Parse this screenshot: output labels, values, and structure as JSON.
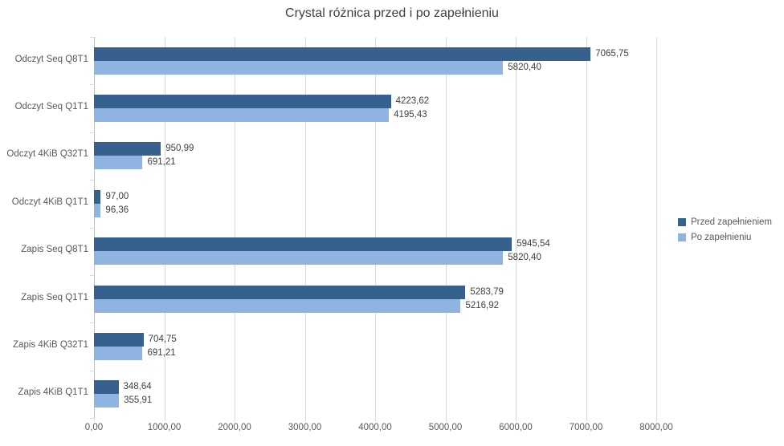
{
  "title": "Crystal różnica przed i po zapełnieniu",
  "chart_data": {
    "type": "bar",
    "orientation": "horizontal",
    "title": "Crystal różnica przed i po zapełnieniu",
    "categories": [
      "Odczyt Seq Q8T1",
      "Odczyt Seq Q1T1",
      "Odczyt 4KiB Q32T1",
      "Odczyt 4KiB Q1T1",
      "Zapis Seq Q8T1",
      "Zapis Seq Q1T1",
      "Zapis 4KiB Q32T1",
      "Zapis 4KiB Q1T1"
    ],
    "series": [
      {
        "name": "Przed zapełnieniem",
        "color": "#36618f",
        "values": [
          7065.75,
          4223.62,
          950.99,
          97.0,
          5945.54,
          5283.79,
          704.75,
          348.64
        ],
        "labels": [
          "7065,75",
          "4223,62",
          "950,99",
          "97,00",
          "5945,54",
          "5283,79",
          "704,75",
          "348,64"
        ]
      },
      {
        "name": "Po zapełnieniu",
        "color": "#8fb4e1",
        "values": [
          5820.4,
          4195.43,
          691.21,
          96.36,
          5820.4,
          5216.92,
          691.21,
          355.91
        ],
        "labels": [
          "5820,40",
          "4195,43",
          "691,21",
          "96,36",
          "5820,40",
          "5216,92",
          "691,21",
          "355,91"
        ]
      }
    ],
    "xlim": [
      0,
      8000
    ],
    "x_tick_step": 1000,
    "x_tick_labels": [
      "0,00",
      "1000,00",
      "2000,00",
      "3000,00",
      "4000,00",
      "5000,00",
      "6000,00",
      "7000,00",
      "8000,00"
    ],
    "grid": true,
    "legend_position": "right",
    "decimal_separator": ","
  },
  "colors": {
    "title_text": "#404040",
    "axis_text": "#595959",
    "value_text": "#404040",
    "gridline": "#d9d9d9",
    "axis_line": "#bfbfbf",
    "background": "#ffffff"
  }
}
